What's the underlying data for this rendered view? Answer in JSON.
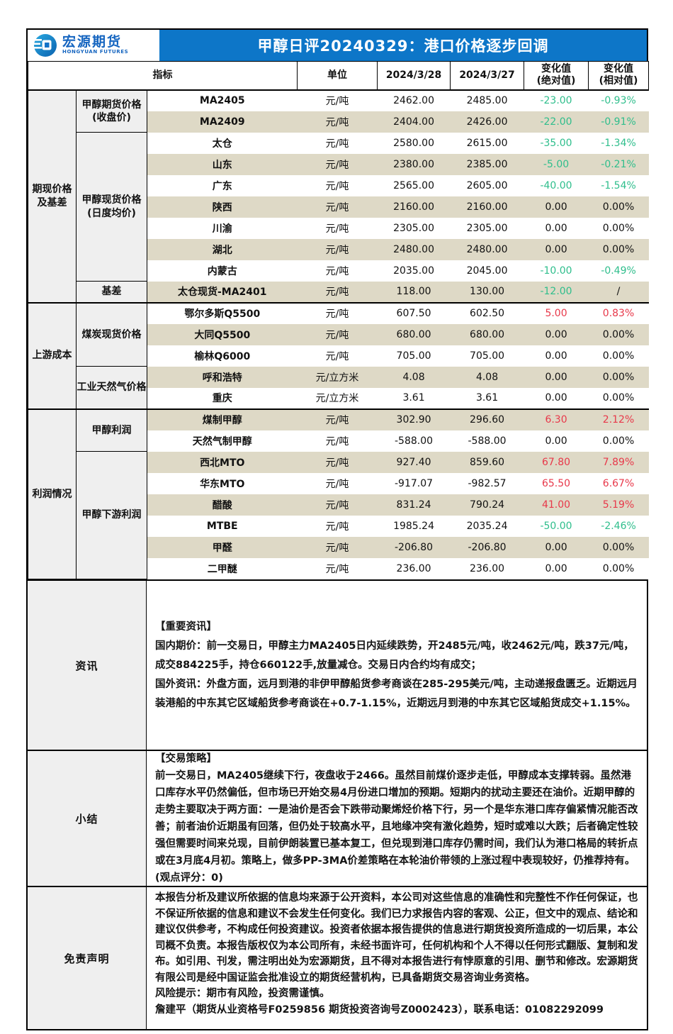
{
  "header": {
    "logo_cn": "宏源期货",
    "logo_en": "HONGYUAN FUTURES",
    "title": "甲醇日评20240329：港口价格逐步回调"
  },
  "colors": {
    "accent_blue": "#0d76c8",
    "logo_blue": "#1565c0",
    "stripe_beige": "#ded9c6",
    "category_gray": "#efefef",
    "change_positive_red": "#e8384a",
    "change_negative_green": "#2fbe8c"
  },
  "table": {
    "columns": {
      "indicator": "指标",
      "unit": "单位",
      "date1": "2024/3/28",
      "date2": "2024/3/27",
      "chg_abs_line1": "变化值",
      "chg_abs_line2": "(绝对值)",
      "chg_rel_line1": "变化值",
      "chg_rel_line2": "(相对值)"
    },
    "sections": [
      {
        "label": "期现价格 及基差",
        "groups": [
          {
            "label": "甲醇期货价格 (收盘价)",
            "rows": [
              {
                "indicator": "MA2405",
                "unit": "元/吨",
                "v1": "2462.00",
                "v2": "2485.00",
                "abs": "-23.00",
                "rel": "-0.93%"
              },
              {
                "indicator": "MA2409",
                "unit": "元/吨",
                "v1": "2404.00",
                "v2": "2426.00",
                "abs": "-22.00",
                "rel": "-0.91%"
              }
            ]
          },
          {
            "label": "甲醇现货价格 (日度均价)",
            "rows": [
              {
                "indicator": "太仓",
                "unit": "元/吨",
                "v1": "2580.00",
                "v2": "2615.00",
                "abs": "-35.00",
                "rel": "-1.34%"
              },
              {
                "indicator": "山东",
                "unit": "元/吨",
                "v1": "2380.00",
                "v2": "2385.00",
                "abs": "-5.00",
                "rel": "-0.21%"
              },
              {
                "indicator": "广东",
                "unit": "元/吨",
                "v1": "2565.00",
                "v2": "2605.00",
                "abs": "-40.00",
                "rel": "-1.54%"
              },
              {
                "indicator": "陕西",
                "unit": "元/吨",
                "v1": "2160.00",
                "v2": "2160.00",
                "abs": "0.00",
                "rel": "0.00%"
              },
              {
                "indicator": "川渝",
                "unit": "元/吨",
                "v1": "2305.00",
                "v2": "2305.00",
                "abs": "0.00",
                "rel": "0.00%"
              },
              {
                "indicator": "湖北",
                "unit": "元/吨",
                "v1": "2480.00",
                "v2": "2480.00",
                "abs": "0.00",
                "rel": "0.00%"
              },
              {
                "indicator": "内蒙古",
                "unit": "元/吨",
                "v1": "2035.00",
                "v2": "2045.00",
                "abs": "-10.00",
                "rel": "-0.49%"
              }
            ]
          },
          {
            "label": "基差",
            "rows": [
              {
                "indicator": "太仓现货-MA2401",
                "unit": "元/吨",
                "v1": "118.00",
                "v2": "130.00",
                "abs": "-12.00",
                "rel": "/"
              }
            ]
          }
        ]
      },
      {
        "label": "上游成本",
        "groups": [
          {
            "label": "煤炭现货价格",
            "rows": [
              {
                "indicator": "鄂尔多斯Q5500",
                "unit": "元/吨",
                "v1": "607.50",
                "v2": "602.50",
                "abs": "5.00",
                "rel": "0.83%"
              },
              {
                "indicator": "大同Q5500",
                "unit": "元/吨",
                "v1": "680.00",
                "v2": "680.00",
                "abs": "0.00",
                "rel": "0.00%"
              },
              {
                "indicator": "榆林Q6000",
                "unit": "元/吨",
                "v1": "705.00",
                "v2": "705.00",
                "abs": "0.00",
                "rel": "0.00%"
              }
            ]
          },
          {
            "label": "工业天然气价格",
            "rows": [
              {
                "indicator": "呼和浩特",
                "unit": "元/立方米",
                "v1": "4.08",
                "v2": "4.08",
                "abs": "0.00",
                "rel": "0.00%"
              },
              {
                "indicator": "重庆",
                "unit": "元/立方米",
                "v1": "3.61",
                "v2": "3.61",
                "abs": "0.00",
                "rel": "0.00%"
              }
            ]
          }
        ]
      },
      {
        "label": "利润情况",
        "groups": [
          {
            "label": "甲醇利润",
            "rows": [
              {
                "indicator": "煤制甲醇",
                "unit": "元/吨",
                "v1": "302.90",
                "v2": "296.60",
                "abs": "6.30",
                "rel": "2.12%"
              },
              {
                "indicator": "天然气制甲醇",
                "unit": "元/吨",
                "v1": "-588.00",
                "v2": "-588.00",
                "abs": "0.00",
                "rel": "0.00%"
              }
            ]
          },
          {
            "label": "甲醇下游利润",
            "rows": [
              {
                "indicator": "西北MTO",
                "unit": "元/吨",
                "v1": "927.40",
                "v2": "859.60",
                "abs": "67.80",
                "rel": "7.89%"
              },
              {
                "indicator": "华东MTO",
                "unit": "元/吨",
                "v1": "-917.07",
                "v2": "-982.57",
                "abs": "65.50",
                "rel": "6.67%"
              },
              {
                "indicator": "醋酸",
                "unit": "元/吨",
                "v1": "831.24",
                "v2": "790.24",
                "abs": "41.00",
                "rel": "5.19%"
              },
              {
                "indicator": "MTBE",
                "unit": "元/吨",
                "v1": "1985.24",
                "v2": "2035.24",
                "abs": "-50.00",
                "rel": "-2.46%"
              },
              {
                "indicator": "甲醛",
                "unit": "元/吨",
                "v1": "-206.80",
                "v2": "-206.80",
                "abs": "0.00",
                "rel": "0.00%"
              },
              {
                "indicator": "二甲醚",
                "unit": "元/吨",
                "v1": "236.00",
                "v2": "236.00",
                "abs": "0.00",
                "rel": "0.00%"
              }
            ]
          }
        ]
      }
    ]
  },
  "notes": [
    {
      "key": "info",
      "label": "资讯",
      "paragraphs": [
        "【重要资讯】",
        "国内期价：前一交易日，甲醇主力MA2405日内延续跌势，开2485元/吨，收2462元/吨，跌37元/吨，成交884225手，持仓660122手,放量减仓。交易日内合约均有成交；",
        "国外资讯：外盘方面，远月到港的非伊甲醇船货参考商谈在285-295美元/吨，主动递报盘匮乏。近期远月装港船的中东其它区域船货参考商谈在+0.7-1.15%，近期远月到港的中东其它区域船货成交+1.15%。"
      ]
    },
    {
      "key": "summary",
      "label": "小结",
      "paragraphs": [
        "【交易策略】",
        "前一交易日，MA2405继续下行，夜盘收于2466。虽然目前煤价逐步走低，甲醇成本支撑转弱。虽然港口库存水平仍然偏低，但市场已开始交易4月份进口增加的预期。短期内的扰动主要还在油价。近期甲醇的走势主要取决于两方面：一是油价是否会下跌带动聚烯烃价格下行，另一个是华东港口库存偏紧情况能否改善；前者油价近期虽有回落，但仍处于较高水平，且地缘冲突有激化趋势，短时或难以大跌；后者确定性较强但需要时间来兑现，目前伊朗装置已基本复工，但兑现到港口库存仍需时间，我们认为港口格局的转折点或在3月底4月初。策略上，做多PP-3MA价差策略在本轮油价带领的上涨过程中表现较好，仍推荐持有。 (观点评分：0)"
      ]
    },
    {
      "key": "disc",
      "label": "免责声明",
      "paragraphs": [
        "本报告分析及建议所依据的信息均来源于公开资料，本公司对这些信息的准确性和完整性不作任何保证，也不保证所依据的信息和建议不会发生任何变化。我们已力求报告内容的客观、公正，但文中的观点、结论和建议仅供参考，不构成任何投资建议。投资者依据本报告提供的信息进行期货投资所造成的一切后果，本公司概不负责。本报告版权仅为本公司所有，未经书面许可，任何机构和个人不得以任何形式翻版、复制和发布。如引用、刊发，需注明出处为宏源期货，且不得对本报告进行有悖原意的引用、删节和修改。宏源期货有限公司是经中国证监会批准设立的期货经营机构，已具备期货交易咨询业务资格。",
        "风险提示：期市有风险，投资需谨慎。",
        "詹建平（期货从业资格号F0259856 期货投资咨询号Z0002423），联系电话：01082292099"
      ]
    }
  ]
}
